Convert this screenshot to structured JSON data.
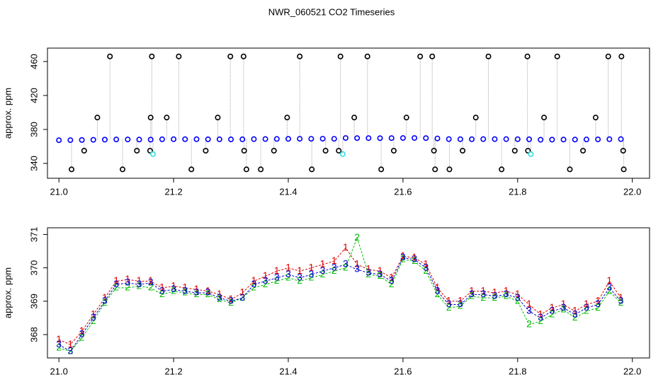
{
  "title": "NWR_060521  CO2 Timeseries",
  "chart_data": [
    {
      "type": "scatter",
      "ylabel": "approx. ppm",
      "xlim": [
        20.98,
        22.03
      ],
      "ylim": [
        322.5,
        475.8
      ],
      "xticks": [
        {
          "value": 21.0,
          "label": "21.0"
        },
        21.2,
        21.4,
        21.6,
        21.8,
        {
          "value": 22.0,
          "label": "22.0"
        }
      ],
      "yticks": [
        340,
        380,
        420,
        460
      ],
      "series": [
        {
          "color": "#0000ff",
          "x": [
            21.0,
            21.02,
            21.04,
            21.06,
            21.08,
            21.1,
            21.12,
            21.14,
            21.16,
            21.18,
            21.2,
            21.22,
            21.24,
            21.26,
            21.28,
            21.3,
            21.32,
            21.34,
            21.36,
            21.38,
            21.4,
            21.42,
            21.44,
            21.46,
            21.48,
            21.5,
            21.52,
            21.54,
            21.56,
            21.58,
            21.6,
            21.62,
            21.64,
            21.66,
            21.68,
            21.7,
            21.72,
            21.74,
            21.76,
            21.78,
            21.8,
            21.82,
            21.84,
            21.86,
            21.88,
            21.9,
            21.92,
            21.94,
            21.96,
            21.98
          ],
          "values": [
            367.3,
            367.4,
            367.6,
            367.8,
            368.0,
            368.2,
            368.2,
            368.1,
            368.0,
            368.4,
            368.5,
            368.5,
            368.5,
            368.4,
            368.4,
            368.3,
            368.4,
            368.6,
            368.7,
            368.8,
            368.9,
            369.0,
            369.0,
            369.1,
            369.0,
            369.9,
            369.8,
            369.8,
            369.7,
            369.8,
            369.9,
            369.9,
            369.8,
            369.4,
            368.6,
            368.5,
            368.5,
            368.6,
            368.6,
            368.6,
            368.5,
            368.4,
            367.9,
            368.0,
            368.1,
            368.1,
            368.2,
            368.3,
            368.5,
            368.6
          ]
        },
        {
          "color": "#000000",
          "x": [
            21.022,
            21.044,
            21.067,
            21.089,
            21.111,
            21.136,
            21.159,
            21.16,
            21.162,
            21.188,
            21.209,
            21.231,
            21.256,
            21.277,
            21.299,
            21.322,
            21.323,
            21.327,
            21.352,
            21.375,
            21.398,
            21.42,
            21.441,
            21.465,
            21.488,
            21.491,
            21.515,
            21.538,
            21.562,
            21.584,
            21.606,
            21.63,
            21.651,
            21.654,
            21.656,
            21.681,
            21.704,
            21.727,
            21.749,
            21.772,
            21.795,
            21.817,
            21.818,
            21.846,
            21.869,
            21.891,
            21.914,
            21.936,
            21.958,
            21.981,
            21.984,
            21.985
          ],
          "values": [
            333,
            355,
            394,
            466,
            333,
            355,
            355,
            394,
            466,
            394,
            466,
            333,
            355,
            394,
            466,
            466,
            355,
            333,
            333,
            355,
            394,
            466,
            333,
            355,
            355,
            466,
            394,
            466,
            333,
            355,
            394,
            466,
            466,
            355,
            333,
            333,
            355,
            394,
            466,
            333,
            355,
            466,
            355,
            394,
            466,
            333,
            355,
            394,
            466,
            466,
            355,
            333
          ]
        },
        {
          "color": "#33dddd",
          "x": [
            21.164,
            21.495,
            21.823
          ],
          "values": [
            351,
            351,
            351
          ]
        }
      ]
    },
    {
      "type": "line",
      "ylabel": "approx. ppm",
      "xlim": [
        20.98,
        22.03
      ],
      "ylim": [
        367.3,
        371.2
      ],
      "xticks": [
        {
          "value": 21.0,
          "label": "21.0"
        },
        21.2,
        21.4,
        21.6,
        21.8,
        {
          "value": 22.0,
          "label": "22.0"
        }
      ],
      "yticks": [
        368,
        369,
        370,
        371
      ],
      "x": [
        21.0,
        21.02,
        21.04,
        21.06,
        21.08,
        21.1,
        21.12,
        21.14,
        21.16,
        21.18,
        21.2,
        21.22,
        21.24,
        21.26,
        21.28,
        21.3,
        21.32,
        21.34,
        21.36,
        21.38,
        21.4,
        21.42,
        21.44,
        21.46,
        21.48,
        21.5,
        21.52,
        21.54,
        21.56,
        21.58,
        21.6,
        21.62,
        21.64,
        21.66,
        21.68,
        21.7,
        21.72,
        21.74,
        21.76,
        21.78,
        21.8,
        21.82,
        21.84,
        21.86,
        21.88,
        21.9,
        21.92,
        21.94,
        21.96,
        21.98
      ],
      "series": [
        {
          "name": "1",
          "color": "#dd0000",
          "values": [
            367.85,
            367.7,
            368.1,
            368.6,
            369.1,
            369.6,
            369.65,
            369.6,
            369.6,
            369.4,
            369.45,
            369.4,
            369.35,
            369.3,
            369.2,
            369.05,
            369.25,
            369.6,
            369.75,
            369.9,
            370.0,
            369.9,
            370.0,
            370.1,
            370.2,
            370.6,
            370.1,
            369.95,
            369.9,
            369.7,
            370.35,
            370.3,
            370.1,
            369.4,
            369.0,
            369.0,
            369.3,
            369.3,
            369.25,
            369.3,
            369.2,
            368.9,
            368.6,
            368.8,
            368.9,
            368.7,
            368.9,
            369.0,
            369.6,
            369.1
          ]
        },
        {
          "name": "2",
          "color": "#00bb00",
          "values": [
            367.6,
            367.5,
            367.9,
            368.4,
            368.95,
            369.4,
            369.4,
            369.45,
            369.4,
            369.2,
            369.3,
            369.25,
            369.2,
            369.2,
            369.05,
            368.95,
            369.1,
            369.4,
            369.5,
            369.6,
            369.7,
            369.6,
            369.7,
            369.8,
            369.9,
            370.0,
            370.9,
            369.8,
            369.75,
            369.5,
            370.25,
            370.2,
            369.9,
            369.2,
            368.8,
            368.85,
            369.15,
            369.1,
            369.1,
            369.15,
            369.0,
            368.3,
            368.4,
            368.6,
            368.75,
            368.5,
            368.7,
            368.8,
            369.3,
            368.95
          ]
        },
        {
          "name": "3",
          "color": "#0000cc",
          "values": [
            367.7,
            367.5,
            368.0,
            368.5,
            369.0,
            369.5,
            369.55,
            369.5,
            369.55,
            369.3,
            369.35,
            369.3,
            369.25,
            369.25,
            369.1,
            369.0,
            369.1,
            369.5,
            369.6,
            369.7,
            369.8,
            369.7,
            369.8,
            369.9,
            370.0,
            370.1,
            369.95,
            369.85,
            369.8,
            369.6,
            370.3,
            370.25,
            370.0,
            369.3,
            368.9,
            368.9,
            369.2,
            369.2,
            369.15,
            369.2,
            369.1,
            368.7,
            368.5,
            368.7,
            368.8,
            368.6,
            368.8,
            368.9,
            369.4,
            369.0
          ]
        }
      ]
    }
  ]
}
